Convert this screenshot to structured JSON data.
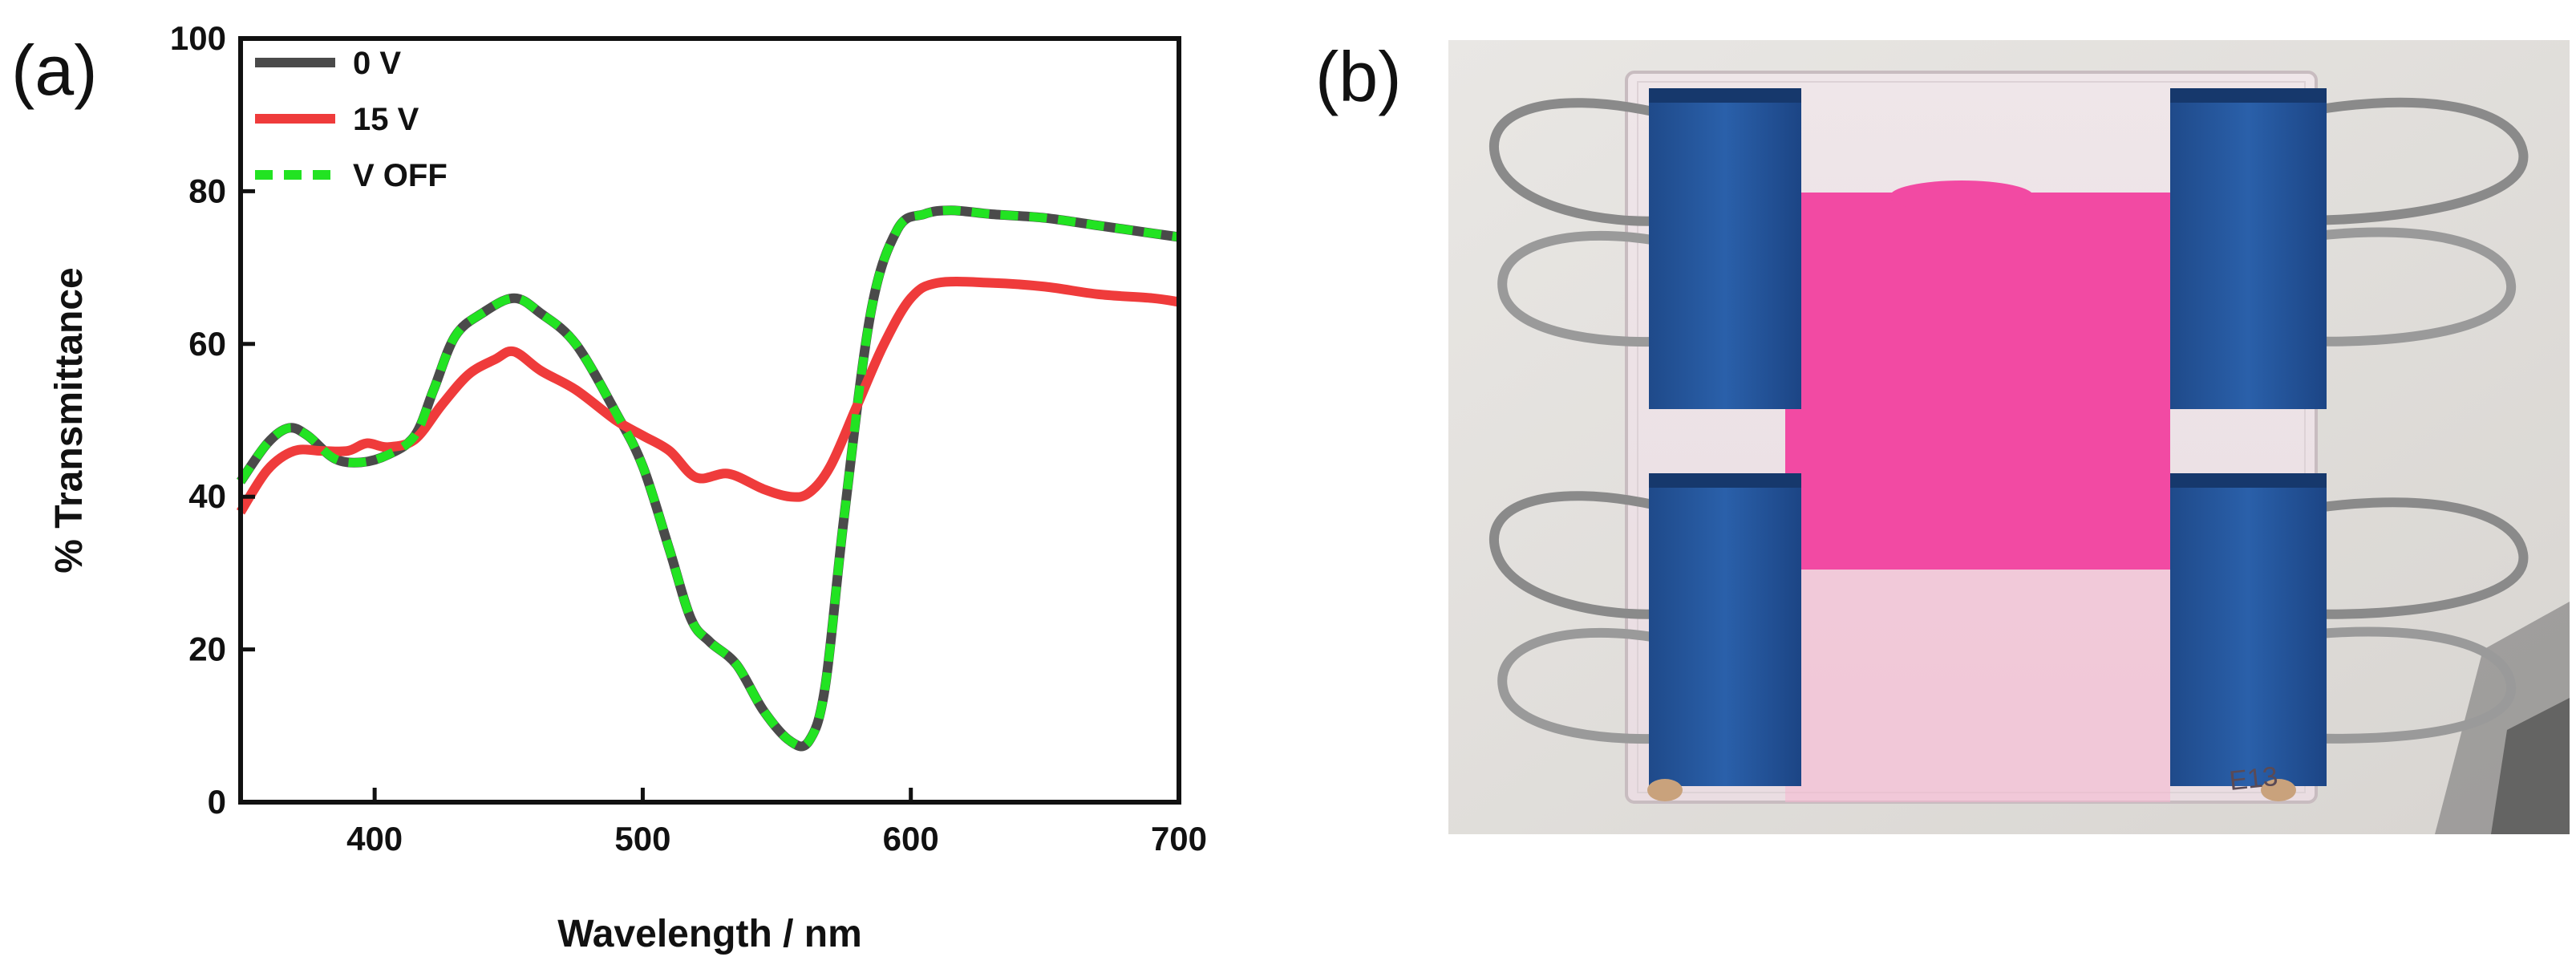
{
  "panels": {
    "a_label": "(a)",
    "b_label": "(b)"
  },
  "chart_data": {
    "type": "line",
    "title": "",
    "xlabel": "Wavelength / nm",
    "ylabel": "% Transmittance",
    "xlim": [
      350,
      700
    ],
    "ylim": [
      0,
      100
    ],
    "xticks": [
      400,
      500,
      600,
      700
    ],
    "yticks": [
      0,
      20,
      40,
      60,
      80,
      100
    ],
    "legend_position": "top-left",
    "grid": false,
    "series": [
      {
        "name": "0 V",
        "color": "#4a4a4a",
        "style": "solid",
        "x": [
          350,
          360,
          368,
          375,
          385,
          395,
          405,
          415,
          422,
          430,
          440,
          452,
          462,
          475,
          490,
          500,
          510,
          518,
          525,
          535,
          545,
          555,
          562,
          568,
          575,
          585,
          595,
          605,
          615,
          630,
          650,
          670,
          690,
          700
        ],
        "y": [
          42,
          47,
          49,
          48,
          45,
          44.5,
          45.5,
          48,
          54,
          61,
          64,
          66,
          64,
          60,
          51,
          44,
          33,
          24,
          21,
          18,
          12,
          8,
          8,
          15,
          37,
          64,
          75,
          77,
          77.5,
          77,
          76.5,
          75.5,
          74.5,
          74
        ]
      },
      {
        "name": "15 V",
        "color": "#ef3b3b",
        "style": "solid",
        "x": [
          350,
          360,
          370,
          380,
          390,
          397,
          405,
          415,
          425,
          435,
          445,
          452,
          462,
          475,
          490,
          500,
          510,
          520,
          532,
          545,
          555,
          562,
          570,
          580,
          590,
          600,
          610,
          630,
          650,
          670,
          690,
          700
        ],
        "y": [
          38,
          43.5,
          46,
          46,
          46,
          47,
          46.5,
          47.5,
          52,
          56,
          58,
          59,
          56.5,
          54,
          50,
          48,
          46,
          42.5,
          43,
          41,
          40,
          40.5,
          44,
          52,
          60,
          66,
          68,
          68,
          67.5,
          66.5,
          66,
          65.5
        ]
      },
      {
        "name": "V OFF",
        "color": "#22e322",
        "style": "dashed",
        "x": [
          350,
          360,
          368,
          375,
          385,
          395,
          405,
          415,
          422,
          430,
          440,
          452,
          462,
          475,
          490,
          500,
          510,
          518,
          525,
          535,
          545,
          555,
          562,
          568,
          575,
          585,
          595,
          605,
          615,
          630,
          650,
          670,
          690,
          700
        ],
        "y": [
          42,
          47,
          49,
          48,
          45,
          44.5,
          45.5,
          48,
          54,
          61,
          64,
          66,
          64,
          60,
          51,
          44,
          33,
          24,
          21,
          18,
          12,
          8,
          8,
          15,
          37,
          64,
          75,
          77,
          77.5,
          77,
          76.5,
          75.5,
          74.5,
          74
        ]
      }
    ]
  },
  "photo": {
    "sample_label": "E13"
  }
}
